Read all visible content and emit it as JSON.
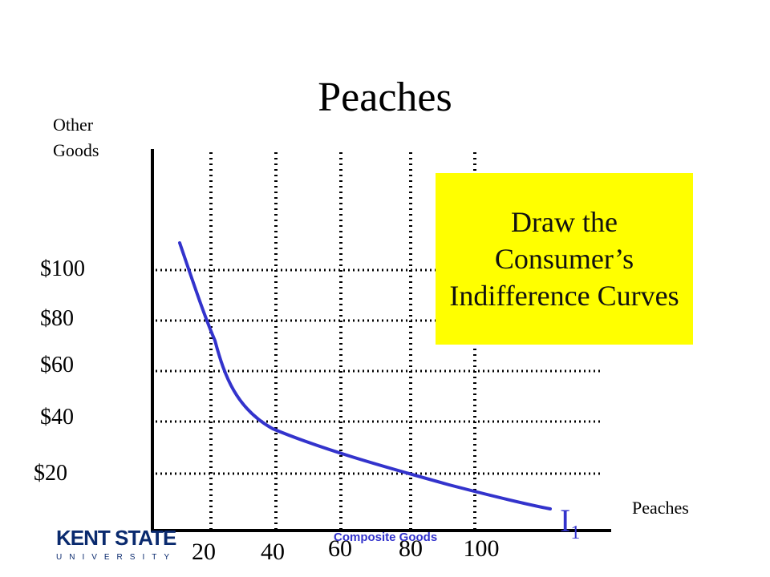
{
  "title": "Peaches",
  "y_axis_label": "Other\nGoods",
  "x_axis_label": "Peaches",
  "y_ticks": [
    "$100",
    "$80",
    "$60",
    "$40",
    "$20"
  ],
  "x_ticks": [
    "20",
    "40",
    "60",
    "80",
    "100"
  ],
  "callout_text": "Draw the Consumer’s Indifference Curves",
  "curve_label_main": "I",
  "curve_label_sub": "1",
  "footer_text": "Composite Goods",
  "logo": {
    "name": "KENT STATE",
    "sub": "UNIVERSITY"
  },
  "colors": {
    "curve": "#3333cc",
    "callout_bg": "#ffff00",
    "axis": "#000000",
    "logo": "#0a2a6e"
  }
}
